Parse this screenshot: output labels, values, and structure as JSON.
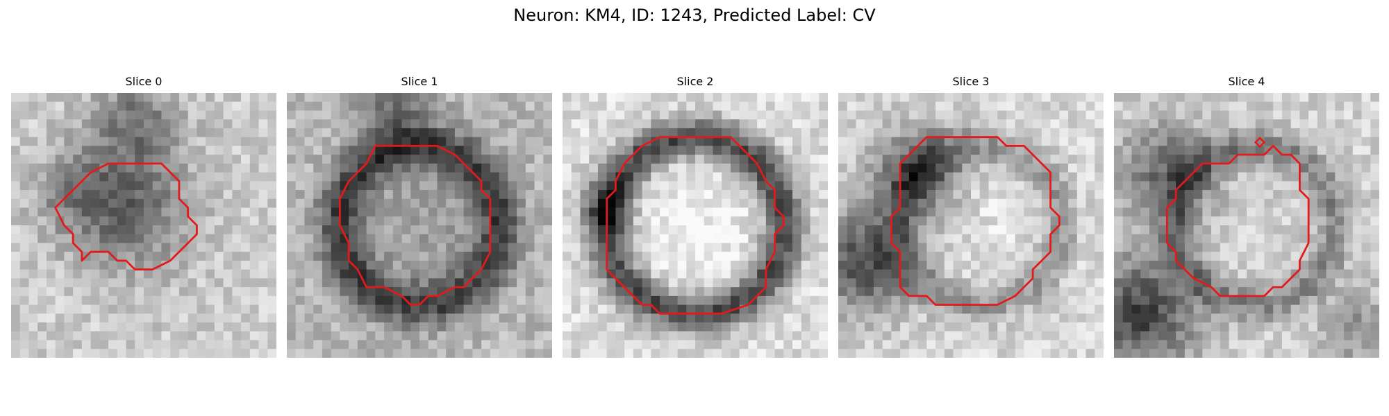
{
  "figure": {
    "title": "Neuron: KM4, ID: 1243, Predicted Label: CV",
    "contour_color": "#e31a1c"
  },
  "panels": [
    {
      "title": "Slice 0"
    },
    {
      "title": "Slice 1"
    },
    {
      "title": "Slice 2"
    },
    {
      "title": "Slice 3"
    },
    {
      "title": "Slice 4"
    }
  ]
}
